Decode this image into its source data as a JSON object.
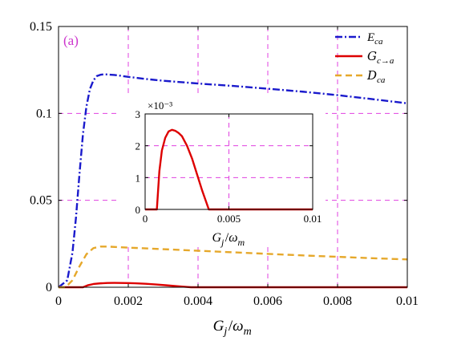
{
  "figure": {
    "panel_tag": "(a)",
    "panel_tag_color": "#cc33cc"
  },
  "chart_data": [
    {
      "id": "main",
      "type": "line",
      "xlabel": "G_j/ω_m",
      "ylabel": "",
      "xlim": [
        0,
        0.01
      ],
      "ylim": [
        0,
        0.15
      ],
      "xticks": [
        0,
        0.002,
        0.004,
        0.006,
        0.008,
        0.01
      ],
      "xtick_labels": [
        "0",
        "0.002",
        "0.004",
        "0.006",
        "0.008",
        "0.01"
      ],
      "yticks": [
        0,
        0.05,
        0.1,
        0.15
      ],
      "ytick_labels": [
        "0",
        "0.05",
        "0.1",
        "0.15"
      ],
      "grid": true,
      "grid_color": "#e040e0",
      "legend_placement": "top-right",
      "series": [
        {
          "key": "E",
          "name": "E_ca",
          "color": "#1a1acc",
          "style": "dash-dot",
          "x": [
            0,
            0.00025,
            0.0004,
            0.0005,
            0.0006,
            0.0007,
            0.0008,
            0.0009,
            0.001,
            0.0011,
            0.0012,
            0.0013,
            0.0014,
            0.0016,
            0.0018,
            0.002,
            0.0025,
            0.003,
            0.004,
            0.005,
            0.006,
            0.007,
            0.008,
            0.009,
            0.01
          ],
          "y": [
            0,
            0.004,
            0.02,
            0.04,
            0.065,
            0.088,
            0.104,
            0.114,
            0.119,
            0.1215,
            0.1222,
            0.1225,
            0.1224,
            0.1221,
            0.1216,
            0.121,
            0.1198,
            0.1188,
            0.1172,
            0.1158,
            0.1142,
            0.1125,
            0.1105,
            0.1082,
            0.1058
          ]
        },
        {
          "key": "G",
          "name": "G_c→a",
          "color": "#dd0000",
          "style": "solid",
          "x": [
            0,
            0.0007,
            0.00075,
            0.00085,
            0.001,
            0.0012,
            0.0014,
            0.0016,
            0.0018,
            0.002,
            0.0022,
            0.0025,
            0.0028,
            0.0031,
            0.0034,
            0.0037,
            0.0038,
            0.005,
            0.01
          ],
          "y": [
            0,
            0,
            0.0004,
            0.0012,
            0.00185,
            0.00225,
            0.00245,
            0.0025,
            0.00247,
            0.0024,
            0.0023,
            0.002,
            0.0016,
            0.0011,
            0.0006,
            0.00015,
            0,
            0,
            0
          ]
        },
        {
          "key": "D",
          "name": "D_ca",
          "color": "#e6a82b",
          "style": "dashed",
          "x": [
            0,
            0.0002,
            0.0004,
            0.0006,
            0.0008,
            0.001,
            0.0012,
            0.0014,
            0.002,
            0.003,
            0.004,
            0.005,
            0.006,
            0.007,
            0.008,
            0.009,
            0.01
          ],
          "y": [
            0,
            0,
            0.004,
            0.012,
            0.019,
            0.0225,
            0.0234,
            0.0234,
            0.0228,
            0.0219,
            0.021,
            0.0201,
            0.0192,
            0.0183,
            0.0175,
            0.0167,
            0.016
          ]
        }
      ]
    },
    {
      "id": "inset",
      "type": "line",
      "xlabel": "G_j/ω_m",
      "ylabel": "",
      "exponent_label": "×10⁻³",
      "xlim": [
        0,
        0.01
      ],
      "ylim": [
        0,
        3
      ],
      "xticks": [
        0,
        0.005,
        0.01
      ],
      "xtick_labels": [
        "0",
        "0.005",
        "0.01"
      ],
      "yticks": [
        0,
        1,
        2,
        3
      ],
      "ytick_labels": [
        "0",
        "1",
        "2",
        "3"
      ],
      "grid": true,
      "grid_color": "#e040e0",
      "series": [
        {
          "key": "G",
          "name": "",
          "color": "#dd0000",
          "style": "solid",
          "x": [
            0,
            0.0007,
            0.00075,
            0.00085,
            0.001,
            0.0012,
            0.0014,
            0.0016,
            0.0018,
            0.002,
            0.0022,
            0.0025,
            0.0028,
            0.0031,
            0.0034,
            0.0037,
            0.0038,
            0.005,
            0.01
          ],
          "y": [
            0,
            0,
            0.4,
            1.2,
            1.85,
            2.25,
            2.45,
            2.5,
            2.47,
            2.4,
            2.3,
            2.0,
            1.6,
            1.1,
            0.6,
            0.15,
            0,
            0,
            0
          ]
        }
      ]
    }
  ]
}
